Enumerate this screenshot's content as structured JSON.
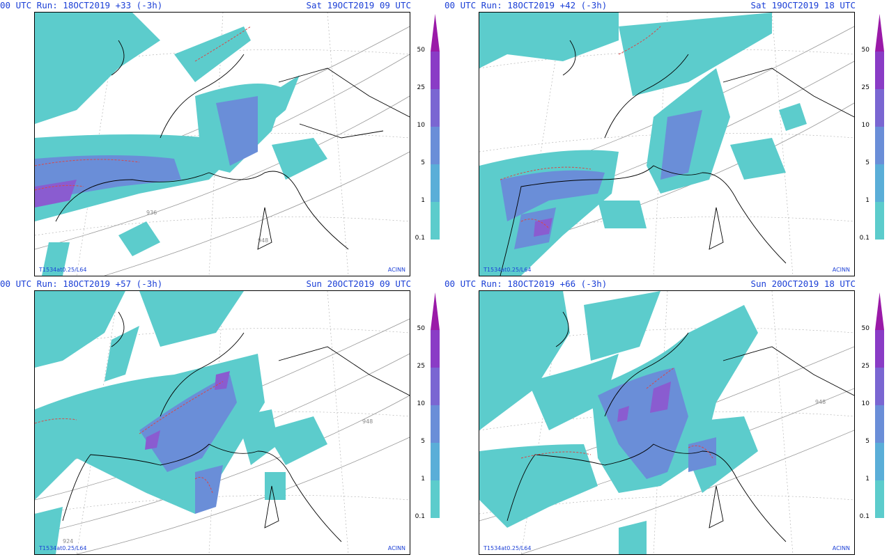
{
  "panels": [
    {
      "run": "00 UTC Run: 18OCT2019 +33 (-3h)",
      "valid": "Sat 19OCT2019 09 UTC",
      "model": "T1534at0.25/L64",
      "credit": "ACINN",
      "contours": [
        "936",
        "948"
      ]
    },
    {
      "run": "00 UTC Run: 18OCT2019 +42 (-3h)",
      "valid": "Sat 19OCT2019 18 UTC",
      "model": "T1534at0.25/L64",
      "credit": "ACINN",
      "contours": []
    },
    {
      "run": "00 UTC Run: 18OCT2019 +57 (-3h)",
      "valid": "Sun 20OCT2019 09 UTC",
      "model": "T1534at0.25/L64",
      "credit": "ACINN",
      "contours": [
        "948",
        "924"
      ]
    },
    {
      "run": "00 UTC Run: 18OCT2019 +66 (-3h)",
      "valid": "Sun 20OCT2019 18 UTC",
      "model": "T1534at0.25/L64",
      "credit": "ACINN",
      "contours": [
        "948"
      ]
    }
  ],
  "legend": {
    "ticks": [
      "50",
      "25",
      "10",
      "5",
      "1",
      "0.1"
    ],
    "colors": [
      "#9a1aa8",
      "#8a3cc6",
      "#7a66d2",
      "#6a8ed8",
      "#5aaed8",
      "#5ccccc"
    ]
  },
  "colors": {
    "header": "#1b3fd6",
    "precip_light": "#5ccccc",
    "precip_med": "#6a8ed8",
    "precip_heavy": "#8a5cd0",
    "contour_dashed": "#d84848"
  }
}
